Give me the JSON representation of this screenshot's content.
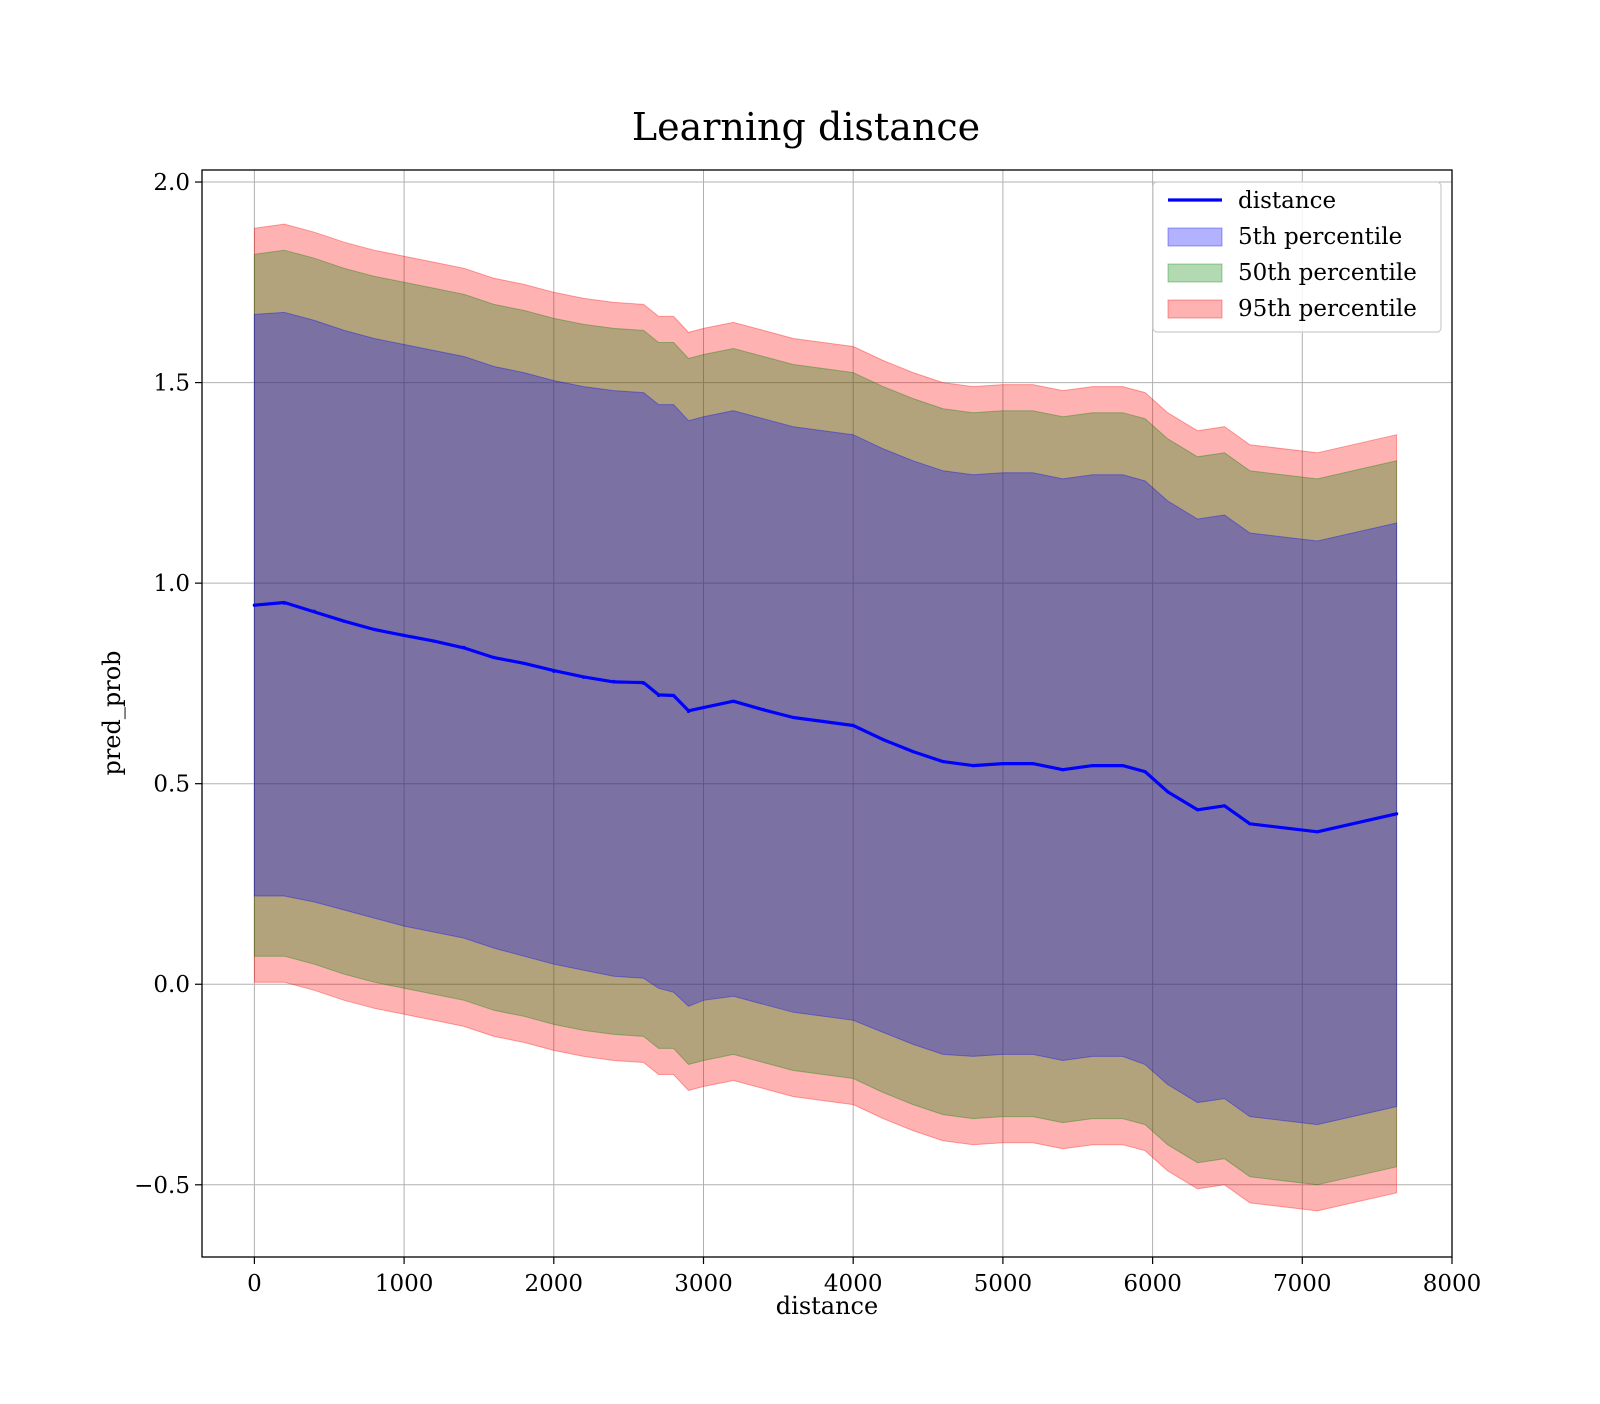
{
  "chart_data": {
    "type": "line",
    "title": "Learning distance",
    "xlabel": "distance",
    "ylabel": "pred_prob",
    "xlim": [
      -350,
      8000
    ],
    "ylim": [
      -0.68,
      2.03
    ],
    "x_ticks": [
      0,
      1000,
      2000,
      3000,
      4000,
      5000,
      6000,
      7000,
      8000
    ],
    "x_tick_labels": [
      "0",
      "1000",
      "2000",
      "3000",
      "4000",
      "5000",
      "6000",
      "7000",
      "8000"
    ],
    "y_ticks": [
      -0.5,
      0.0,
      0.5,
      1.0,
      1.5,
      2.0
    ],
    "y_tick_labels": [
      "−0.5",
      "0.0",
      "0.5",
      "1.0",
      "1.5",
      "2.0"
    ],
    "grid": true,
    "legend_position": "top-right",
    "x": [
      0,
      200,
      400,
      600,
      800,
      1000,
      1200,
      1400,
      1600,
      1800,
      2000,
      2200,
      2400,
      2600,
      2700,
      2800,
      2900,
      3000,
      3200,
      3400,
      3600,
      3800,
      4000,
      4200,
      4400,
      4600,
      4800,
      5000,
      5200,
      5400,
      5600,
      5800,
      5950,
      6100,
      6300,
      6480,
      6650,
      7100,
      7630
    ],
    "series": [
      {
        "name": "distance",
        "kind": "line",
        "color": "#0000ff",
        "values": [
          0.945,
          0.95,
          0.93,
          0.905,
          0.885,
          0.87,
          0.855,
          0.84,
          0.815,
          0.8,
          0.78,
          0.765,
          0.755,
          0.75,
          0.72,
          0.72,
          0.68,
          0.69,
          0.705,
          0.685,
          0.665,
          0.655,
          0.645,
          0.61,
          0.58,
          0.555,
          0.545,
          0.55,
          0.55,
          0.535,
          0.545,
          0.545,
          0.53,
          0.48,
          0.435,
          0.445,
          0.4,
          0.38,
          0.425
        ]
      },
      {
        "name": "5th percentile",
        "kind": "band",
        "color": "#0000ff",
        "lower": [
          0.22,
          0.22,
          0.205,
          0.185,
          0.165,
          0.145,
          0.13,
          0.115,
          0.09,
          0.07,
          0.05,
          0.035,
          0.02,
          0.015,
          -0.01,
          -0.02,
          -0.055,
          -0.04,
          -0.03,
          -0.05,
          -0.07,
          -0.08,
          -0.09,
          -0.12,
          -0.15,
          -0.175,
          -0.18,
          -0.175,
          -0.175,
          -0.19,
          -0.18,
          -0.18,
          -0.2,
          -0.25,
          -0.295,
          -0.285,
          -0.33,
          -0.35,
          -0.305
        ],
        "upper": [
          1.67,
          1.675,
          1.655,
          1.63,
          1.61,
          1.595,
          1.58,
          1.565,
          1.54,
          1.525,
          1.505,
          1.49,
          1.48,
          1.475,
          1.445,
          1.445,
          1.405,
          1.415,
          1.43,
          1.41,
          1.39,
          1.38,
          1.37,
          1.335,
          1.305,
          1.28,
          1.27,
          1.275,
          1.275,
          1.26,
          1.27,
          1.27,
          1.255,
          1.205,
          1.16,
          1.17,
          1.125,
          1.105,
          1.15
        ]
      },
      {
        "name": "50th percentile",
        "kind": "band",
        "color": "#008000",
        "lower": [
          0.07,
          0.07,
          0.05,
          0.025,
          0.005,
          -0.01,
          -0.025,
          -0.04,
          -0.065,
          -0.08,
          -0.1,
          -0.115,
          -0.125,
          -0.13,
          -0.16,
          -0.16,
          -0.2,
          -0.19,
          -0.175,
          -0.195,
          -0.215,
          -0.225,
          -0.235,
          -0.27,
          -0.3,
          -0.325,
          -0.335,
          -0.33,
          -0.33,
          -0.345,
          -0.335,
          -0.335,
          -0.35,
          -0.4,
          -0.445,
          -0.435,
          -0.48,
          -0.5,
          -0.455
        ],
        "upper": [
          1.82,
          1.83,
          1.81,
          1.785,
          1.765,
          1.75,
          1.735,
          1.72,
          1.695,
          1.68,
          1.66,
          1.645,
          1.635,
          1.63,
          1.6,
          1.6,
          1.56,
          1.57,
          1.585,
          1.565,
          1.545,
          1.535,
          1.525,
          1.49,
          1.46,
          1.435,
          1.425,
          1.43,
          1.43,
          1.415,
          1.425,
          1.425,
          1.41,
          1.36,
          1.315,
          1.325,
          1.28,
          1.26,
          1.305
        ]
      },
      {
        "name": "95th percentile",
        "kind": "band",
        "color": "#ff0000",
        "lower": [
          0.005,
          0.005,
          -0.015,
          -0.04,
          -0.06,
          -0.075,
          -0.09,
          -0.105,
          -0.13,
          -0.145,
          -0.165,
          -0.18,
          -0.19,
          -0.195,
          -0.225,
          -0.225,
          -0.265,
          -0.255,
          -0.24,
          -0.26,
          -0.28,
          -0.29,
          -0.3,
          -0.335,
          -0.365,
          -0.39,
          -0.4,
          -0.395,
          -0.395,
          -0.41,
          -0.4,
          -0.4,
          -0.415,
          -0.465,
          -0.51,
          -0.5,
          -0.545,
          -0.565,
          -0.52
        ],
        "upper": [
          1.885,
          1.895,
          1.875,
          1.85,
          1.83,
          1.815,
          1.8,
          1.785,
          1.76,
          1.745,
          1.725,
          1.71,
          1.7,
          1.695,
          1.665,
          1.665,
          1.625,
          1.635,
          1.65,
          1.63,
          1.61,
          1.6,
          1.59,
          1.555,
          1.525,
          1.5,
          1.49,
          1.495,
          1.495,
          1.48,
          1.49,
          1.49,
          1.475,
          1.425,
          1.38,
          1.39,
          1.345,
          1.325,
          1.37
        ]
      }
    ]
  }
}
